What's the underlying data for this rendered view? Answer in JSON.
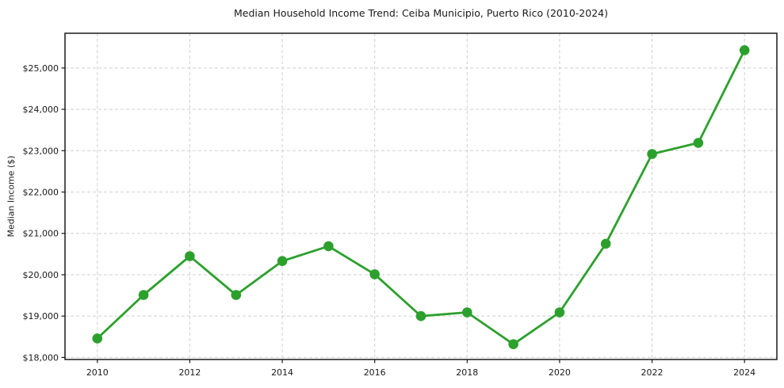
{
  "chart_data": {
    "type": "line",
    "title": "Median Household Income Trend: Ceiba Municipio, Puerto Rico (2010-2024)",
    "xlabel": "",
    "ylabel": "Median Income ($)",
    "x": [
      2010,
      2011,
      2012,
      2013,
      2014,
      2015,
      2016,
      2017,
      2018,
      2019,
      2020,
      2021,
      2022,
      2023,
      2024
    ],
    "values": [
      18460,
      19510,
      20450,
      19510,
      20330,
      20690,
      20010,
      19000,
      19090,
      18320,
      19090,
      20750,
      22920,
      23190,
      25430
    ],
    "xtick_values": [
      2010,
      2012,
      2014,
      2016,
      2018,
      2020,
      2022,
      2024
    ],
    "xtick_labels": [
      "2010",
      "2012",
      "2014",
      "2016",
      "2018",
      "2020",
      "2022",
      "2024"
    ],
    "ytick_values": [
      18000,
      19000,
      20000,
      21000,
      22000,
      23000,
      24000,
      25000
    ],
    "ytick_labels": [
      "$18,000",
      "$19,000",
      "$20,000",
      "$21,000",
      "$22,000",
      "$23,000",
      "$24,000",
      "$25,000"
    ],
    "xlim": [
      2009.3,
      2024.7
    ],
    "ylim": [
      17950,
      25840
    ],
    "grid": true,
    "legend": false,
    "line_color": "#2ca02c",
    "marker": "circle"
  },
  "style": {
    "background": "#ffffff",
    "grid_color": "#cfcfcf",
    "axis_color": "#1a1a1a",
    "text_color": "#1a1a1a"
  }
}
